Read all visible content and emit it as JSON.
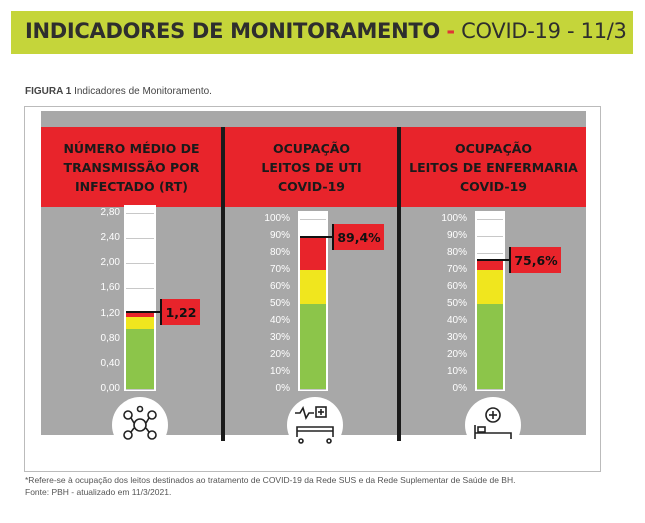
{
  "banner": {
    "title_bold": "INDICADORES DE MONITORAMENTO",
    "separator": "-",
    "title_rest": "COVID-19 - 11/3"
  },
  "figure": {
    "label": "FIGURA 1",
    "caption": "Indicadores de Monitoramento."
  },
  "colors": {
    "banner": "#c5d53a",
    "header_red": "#e8242b",
    "green": "#8cc54a",
    "yellow": "#f0e61e",
    "red": "#e8242b",
    "gray_bg": "#a8a8a8"
  },
  "chart_data": [
    {
      "type": "gauge",
      "title_lines": [
        "NÚMERO MÉDIO DE",
        "TRANSMISSÃO POR",
        "INFECTADO (RT)"
      ],
      "ticks": [
        "2,80",
        "2,40",
        "2,00",
        "1,60",
        "1,20",
        "0,80",
        "0,40",
        "0,00"
      ],
      "tick_values": [
        2.8,
        2.4,
        2.0,
        1.6,
        1.2,
        0.8,
        0.4,
        0.0
      ],
      "ylim": [
        0,
        2.8
      ],
      "value": 1.22,
      "value_label": "1,22",
      "zones": [
        {
          "color": "green",
          "from": 0.0,
          "to": 0.95
        },
        {
          "color": "yellow",
          "from": 0.95,
          "to": 1.15
        },
        {
          "color": "red",
          "from": 1.15,
          "to": 1.22
        }
      ],
      "icon": "virus-network-icon"
    },
    {
      "type": "gauge",
      "title_lines": [
        "OCUPAÇÃO",
        "LEITOS DE UTI",
        "COVID-19"
      ],
      "ticks": [
        "100%",
        "90%",
        "80%",
        "70%",
        "60%",
        "50%",
        "40%",
        "30%",
        "20%",
        "10%",
        "0%"
      ],
      "tick_values": [
        100,
        90,
        80,
        70,
        60,
        50,
        40,
        30,
        20,
        10,
        0
      ],
      "ylim": [
        0,
        100
      ],
      "value": 89.4,
      "value_label": "89,4%",
      "zones": [
        {
          "color": "green",
          "from": 0,
          "to": 50
        },
        {
          "color": "yellow",
          "from": 50,
          "to": 70
        },
        {
          "color": "red",
          "from": 70,
          "to": 89.4
        }
      ],
      "icon": "icu-bed-icon"
    },
    {
      "type": "gauge",
      "title_lines": [
        "OCUPAÇÃO",
        "LEITOS DE ENFERMARIA",
        "COVID-19"
      ],
      "ticks": [
        "100%",
        "90%",
        "80%",
        "70%",
        "60%",
        "50%",
        "40%",
        "30%",
        "20%",
        "10%",
        "0%"
      ],
      "tick_values": [
        100,
        90,
        80,
        70,
        60,
        50,
        40,
        30,
        20,
        10,
        0
      ],
      "ylim": [
        0,
        100
      ],
      "value": 75.6,
      "value_label": "75,6%",
      "zones": [
        {
          "color": "green",
          "from": 0,
          "to": 50
        },
        {
          "color": "yellow",
          "from": 50,
          "to": 70
        },
        {
          "color": "red",
          "from": 70,
          "to": 75.6
        }
      ],
      "icon": "ward-bed-icon"
    }
  ],
  "footnotes": {
    "line1": "*Refere-se à ocupação dos leitos destinados ao tratamento de COVID-19 da Rede SUS e da Rede Suplementar de Saúde de BH.",
    "line2": "Fonte: PBH - atualizado em 11/3/2021."
  }
}
